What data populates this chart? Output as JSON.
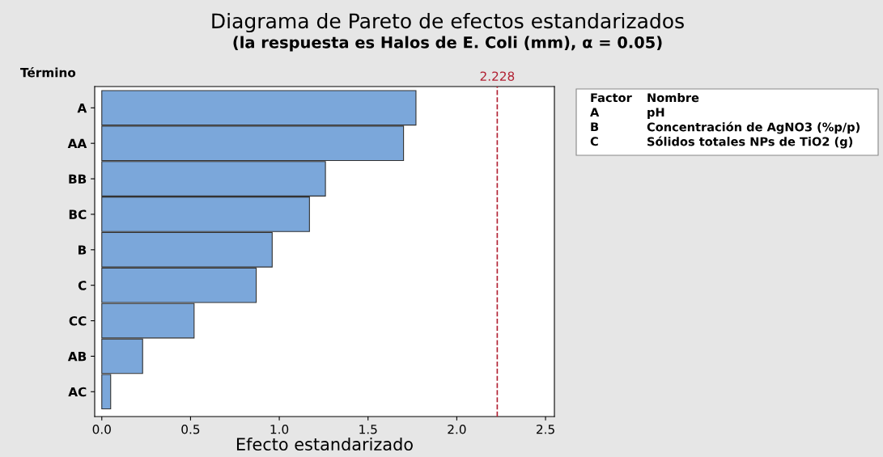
{
  "chart_data": {
    "type": "bar",
    "orientation": "horizontal",
    "title": "Diagrama de Pareto de efectos estandarizados",
    "subtitle": "(la respuesta es Halos de E. Coli (mm), α = 0.05)",
    "xlabel": "Efecto estandarizado",
    "ylabel": "Término",
    "categories": [
      "A",
      "AA",
      "BB",
      "BC",
      "B",
      "C",
      "CC",
      "AB",
      "AC"
    ],
    "values": [
      1.77,
      1.7,
      1.26,
      1.17,
      0.96,
      0.87,
      0.52,
      0.23,
      0.05
    ],
    "color": "#7ba7da",
    "xlim": [
      -0.04,
      2.55
    ],
    "xticks": [
      {
        "value": 0,
        "label": "0.0"
      },
      {
        "value": 0.5,
        "label": "0.5"
      },
      {
        "value": 1,
        "label": "1.0"
      },
      {
        "value": 1.5,
        "label": "1.5"
      },
      {
        "value": 2,
        "label": "2.0"
      },
      {
        "value": 2.5,
        "label": "2.5"
      }
    ],
    "ref_lines": [
      {
        "axis": "x",
        "value": 2.228,
        "label": "2.228",
        "color": "#b22234",
        "line_style": "dashed"
      }
    ],
    "annotations": [
      "Factor",
      "Nombre",
      "A",
      "pH",
      "B",
      "Concentración de AgNO3 (%p/p)",
      "C",
      "Sólidos totales NPs de TiO2 (g)"
    ],
    "grid": false,
    "legend": false
  }
}
